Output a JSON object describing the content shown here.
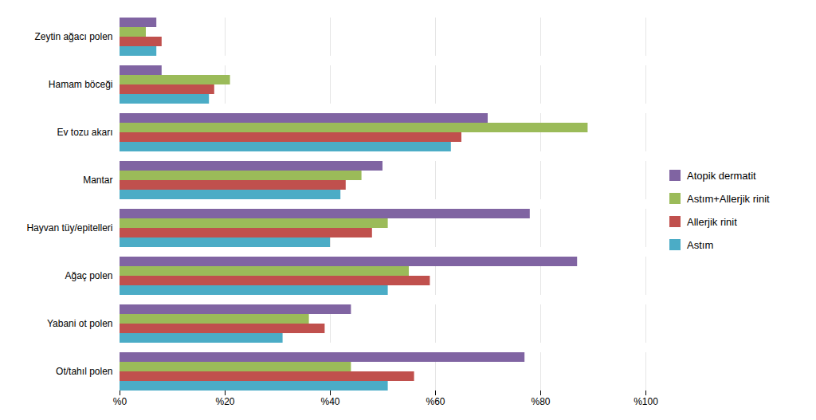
{
  "chart_data": {
    "type": "bar",
    "orientation": "horizontal",
    "categories": [
      "Zeytin ağacı polen",
      "Hamam böceği",
      "Ev tozu akarı",
      "Mantar",
      "Hayvan tüy/epitelleri",
      "Ağaç polen",
      "Yabani ot polen",
      "Ot/tahıl polen"
    ],
    "series": [
      {
        "name": "Atopik dermatit",
        "color": "#8064a2",
        "values": [
          7,
          8,
          70,
          50,
          78,
          87,
          44,
          77
        ]
      },
      {
        "name": "Astım+Allerjik rinit",
        "color": "#9bbb59",
        "values": [
          5,
          21,
          89,
          46,
          51,
          55,
          36,
          44
        ]
      },
      {
        "name": "Allerjik rinit",
        "color": "#c0504d",
        "values": [
          8,
          18,
          65,
          43,
          48,
          59,
          39,
          56
        ]
      },
      {
        "name": "Astım",
        "color": "#4bacc6",
        "values": [
          7,
          17,
          63,
          42,
          40,
          51,
          31,
          51
        ]
      }
    ],
    "xlim": [
      0,
      100
    ],
    "xticks": [
      {
        "value": 0,
        "label": "%0"
      },
      {
        "value": 20,
        "label": "%20"
      },
      {
        "value": 40,
        "label": "%40"
      },
      {
        "value": 60,
        "label": "%60"
      },
      {
        "value": 80,
        "label": "%80"
      },
      {
        "value": 100,
        "label": "%100"
      }
    ],
    "grid": true,
    "legend": "right"
  }
}
